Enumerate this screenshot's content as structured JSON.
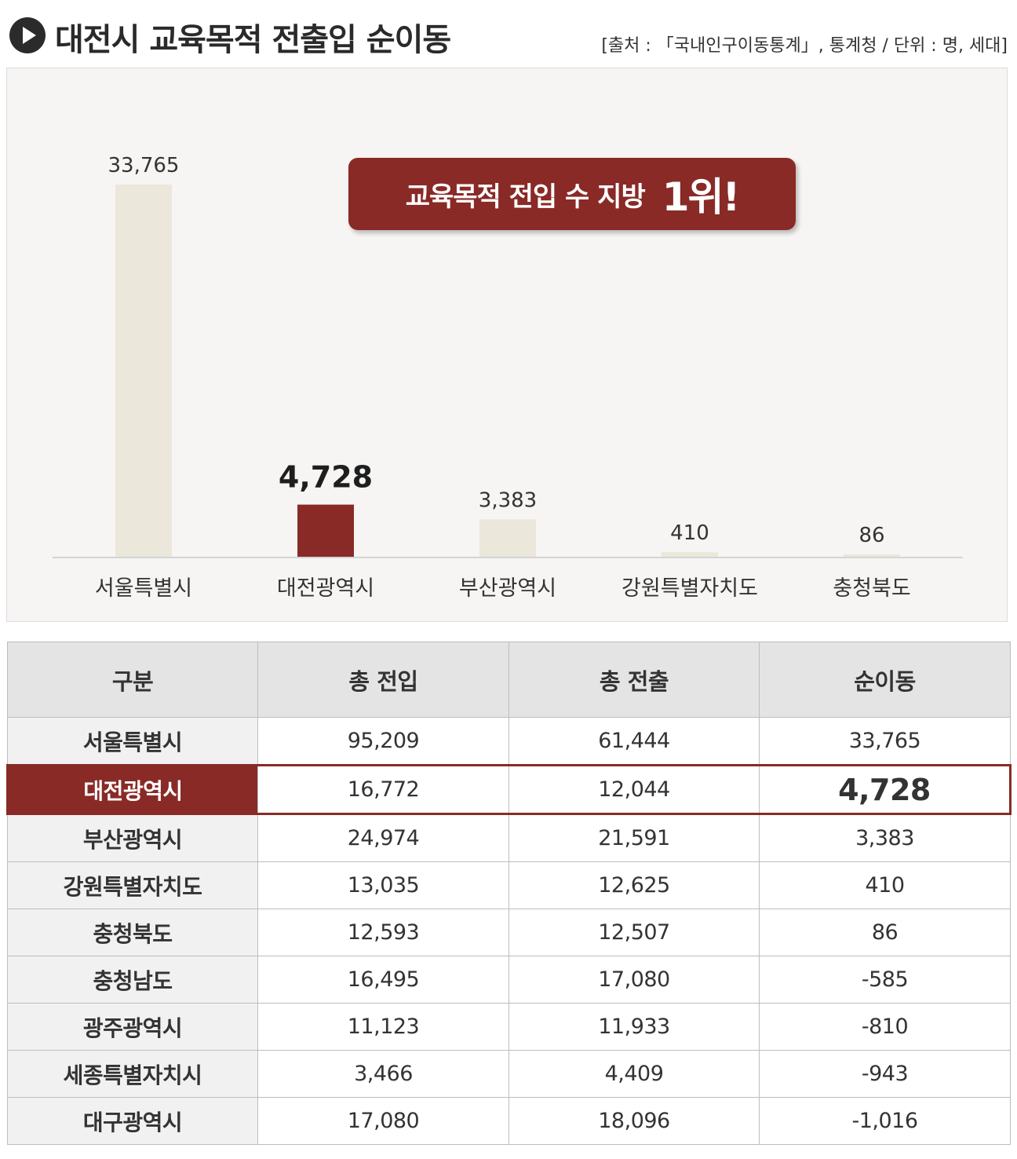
{
  "header": {
    "title": "대전시 교육목적 전출입 순이동",
    "source": "[출처 : 「국내인구이동통계」, 통계청 / 단위 : 명, 세대]"
  },
  "callout": {
    "main": "교육목적 전입 수 지방",
    "rank": "1위!"
  },
  "colors": {
    "highlight": "#892a26",
    "bar": "#ebe7db",
    "background": "#f6f5f3"
  },
  "chart_data": {
    "type": "bar",
    "categories": [
      "서울특별시",
      "대전광역시",
      "부산광역시",
      "강원특별자치도",
      "충청북도"
    ],
    "values": [
      33765,
      4728,
      3383,
      410,
      86
    ],
    "value_labels": [
      "33,765",
      "4,728",
      "3,383",
      "410",
      "86"
    ],
    "highlight_index": 1,
    "title": "",
    "xlabel": "",
    "ylabel": "",
    "ylim": [
      0,
      33765
    ],
    "grid": false,
    "legend": "none"
  },
  "table": {
    "headers": [
      "구분",
      "총 전입",
      "총 전출",
      "순이동"
    ],
    "highlight_row": 1,
    "rows": [
      [
        "서울특별시",
        "95,209",
        "61,444",
        "33,765"
      ],
      [
        "대전광역시",
        "16,772",
        "12,044",
        "4,728"
      ],
      [
        "부산광역시",
        "24,974",
        "21,591",
        "3,383"
      ],
      [
        "강원특별자치도",
        "13,035",
        "12,625",
        "410"
      ],
      [
        "충청북도",
        "12,593",
        "12,507",
        "86"
      ],
      [
        "충청남도",
        "16,495",
        "17,080",
        "-585"
      ],
      [
        "광주광역시",
        "11,123",
        "11,933",
        "-810"
      ],
      [
        "세종특별자치시",
        "3,466",
        "4,409",
        "-943"
      ],
      [
        "대구광역시",
        "17,080",
        "18,096",
        "-1,016"
      ]
    ]
  }
}
